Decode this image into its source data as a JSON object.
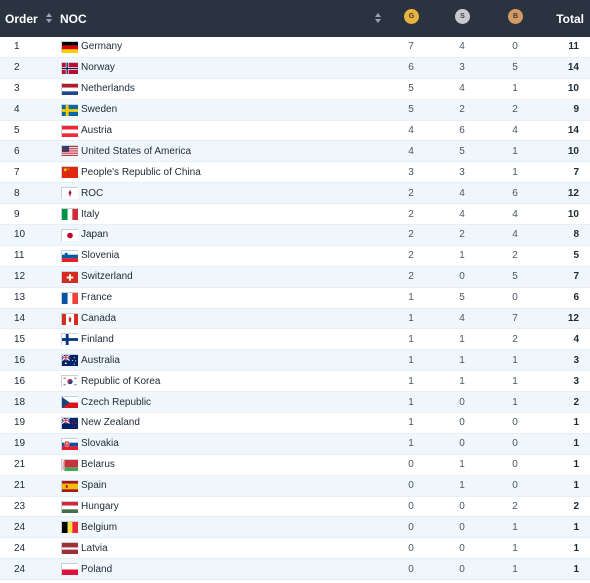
{
  "header": {
    "order_label": "Order",
    "noc_label": "NOC",
    "gold_label": "G",
    "silver_label": "S",
    "bronze_label": "B",
    "total_label": "Total",
    "gold_color": "#e8b33f",
    "silver_color": "#c7c9cc",
    "bronze_color": "#d39a64"
  },
  "rows": [
    {
      "order": "1",
      "name": "Germany",
      "flag": "germany-flag",
      "g": "7",
      "s": "4",
      "b": "0",
      "total": "11"
    },
    {
      "order": "2",
      "name": "Norway",
      "flag": "norway-flag",
      "g": "6",
      "s": "3",
      "b": "5",
      "total": "14"
    },
    {
      "order": "3",
      "name": "Netherlands",
      "flag": "netherlands-flag",
      "g": "5",
      "s": "4",
      "b": "1",
      "total": "10"
    },
    {
      "order": "4",
      "name": "Sweden",
      "flag": "sweden-flag",
      "g": "5",
      "s": "2",
      "b": "2",
      "total": "9"
    },
    {
      "order": "5",
      "name": "Austria",
      "flag": "austria-flag",
      "g": "4",
      "s": "6",
      "b": "4",
      "total": "14"
    },
    {
      "order": "6",
      "name": "United States of America",
      "flag": "usa-flag",
      "g": "4",
      "s": "5",
      "b": "1",
      "total": "10"
    },
    {
      "order": "7",
      "name": "People's Republic of China",
      "flag": "china-flag",
      "g": "3",
      "s": "3",
      "b": "1",
      "total": "7"
    },
    {
      "order": "8",
      "name": "ROC",
      "flag": "roc-emblem-flag",
      "g": "2",
      "s": "4",
      "b": "6",
      "total": "12"
    },
    {
      "order": "9",
      "name": "Italy",
      "flag": "italy-flag",
      "g": "2",
      "s": "4",
      "b": "4",
      "total": "10"
    },
    {
      "order": "10",
      "name": "Japan",
      "flag": "japan-flag",
      "g": "2",
      "s": "2",
      "b": "4",
      "total": "8"
    },
    {
      "order": "11",
      "name": "Slovenia",
      "flag": "slovenia-flag",
      "g": "2",
      "s": "1",
      "b": "2",
      "total": "5"
    },
    {
      "order": "12",
      "name": "Switzerland",
      "flag": "switzerland-flag",
      "g": "2",
      "s": "0",
      "b": "5",
      "total": "7"
    },
    {
      "order": "13",
      "name": "France",
      "flag": "france-flag",
      "g": "1",
      "s": "5",
      "b": "0",
      "total": "6"
    },
    {
      "order": "14",
      "name": "Canada",
      "flag": "canada-flag",
      "g": "1",
      "s": "4",
      "b": "7",
      "total": "12"
    },
    {
      "order": "15",
      "name": "Finland",
      "flag": "finland-flag",
      "g": "1",
      "s": "1",
      "b": "2",
      "total": "4"
    },
    {
      "order": "16",
      "name": "Australia",
      "flag": "australia-flag",
      "g": "1",
      "s": "1",
      "b": "1",
      "total": "3"
    },
    {
      "order": "16",
      "name": "Republic of Korea",
      "flag": "korea-flag",
      "g": "1",
      "s": "1",
      "b": "1",
      "total": "3"
    },
    {
      "order": "18",
      "name": "Czech Republic",
      "flag": "czech-flag",
      "g": "1",
      "s": "0",
      "b": "1",
      "total": "2"
    },
    {
      "order": "19",
      "name": "New Zealand",
      "flag": "new-zealand-flag",
      "g": "1",
      "s": "0",
      "b": "0",
      "total": "1"
    },
    {
      "order": "19",
      "name": "Slovakia",
      "flag": "slovakia-flag",
      "g": "1",
      "s": "0",
      "b": "0",
      "total": "1"
    },
    {
      "order": "21",
      "name": "Belarus",
      "flag": "belarus-flag",
      "g": "0",
      "s": "1",
      "b": "0",
      "total": "1"
    },
    {
      "order": "21",
      "name": "Spain",
      "flag": "spain-flag",
      "g": "0",
      "s": "1",
      "b": "0",
      "total": "1"
    },
    {
      "order": "23",
      "name": "Hungary",
      "flag": "hungary-flag",
      "g": "0",
      "s": "0",
      "b": "2",
      "total": "2"
    },
    {
      "order": "24",
      "name": "Belgium",
      "flag": "belgium-flag",
      "g": "0",
      "s": "0",
      "b": "1",
      "total": "1"
    },
    {
      "order": "24",
      "name": "Latvia",
      "flag": "latvia-flag",
      "g": "0",
      "s": "0",
      "b": "1",
      "total": "1"
    },
    {
      "order": "24",
      "name": "Poland",
      "flag": "poland-flag",
      "g": "0",
      "s": "0",
      "b": "1",
      "total": "1"
    }
  ]
}
